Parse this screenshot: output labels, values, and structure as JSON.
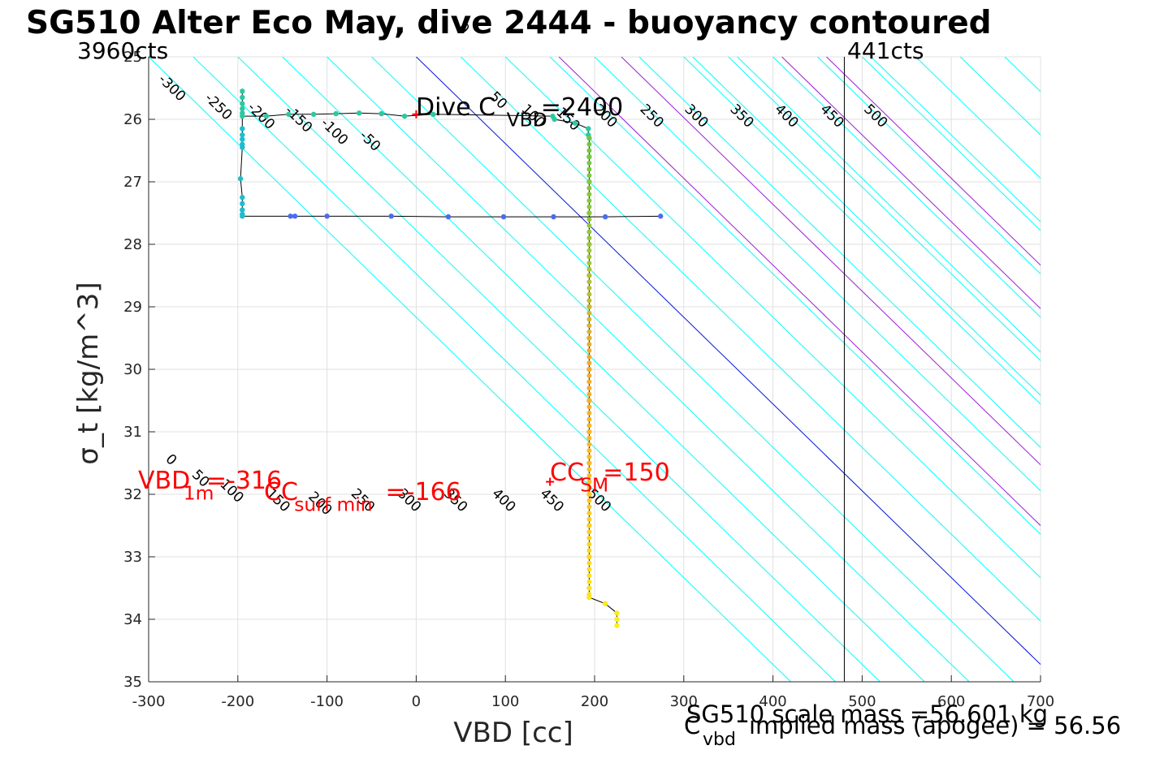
{
  "title": "SG510 Alter Eco May, dive 2444 - buoyancy contoured",
  "colors": {
    "background": "#ffffff",
    "contour": "#00ffff",
    "contour_highlight": "#9b1ed6",
    "zero_line": "#0016d8",
    "profile_line": "#000000",
    "annotation": "#ff0000",
    "grid": "#e0e0e0"
  },
  "chart_data": {
    "type": "scatter",
    "title": "SG510 Alter Eco May, dive 2444 - buoyancy contoured",
    "xlabel": "VBD [cc]",
    "ylabel": "σ_t [kg/m^3]",
    "xlim": [
      -300,
      700
    ],
    "ylim": [
      25,
      35
    ],
    "y_reversed": true,
    "grid": true,
    "x_ticks": [
      -300,
      -200,
      -100,
      0,
      100,
      200,
      300,
      400,
      500,
      600,
      700
    ],
    "y_ticks": [
      25,
      26,
      27,
      28,
      29,
      30,
      31,
      32,
      33,
      34,
      35
    ],
    "contour_slope_cc_per_sigma": 72,
    "upper_contours": {
      "levels": [
        -300,
        -250,
        -200,
        -150,
        -100,
        -50,
        0,
        50,
        100,
        150,
        200,
        250,
        300,
        350,
        400,
        450,
        500
      ],
      "offset": 0,
      "label_positions": [
        {
          "level": -300,
          "x": -274,
          "y": 25.5
        },
        {
          "level": -250,
          "x": -222,
          "y": 25.8
        },
        {
          "level": -200,
          "x": -174,
          "y": 25.95
        },
        {
          "level": -150,
          "x": -132,
          "y": 26.0
        },
        {
          "level": -100,
          "x": -92,
          "y": 26.2
        },
        {
          "level": -50,
          "x": -52,
          "y": 26.35
        },
        {
          "level": 0,
          "x": 53,
          "y": 24.55
        },
        {
          "level": 50,
          "x": 92,
          "y": 25.7
        },
        {
          "level": 100,
          "x": 131,
          "y": 25.95
        },
        {
          "level": 150,
          "x": 170,
          "y": 26.0
        },
        {
          "level": 200,
          "x": 212,
          "y": 25.95
        },
        {
          "level": 250,
          "x": 264,
          "y": 25.95
        },
        {
          "level": 300,
          "x": 314,
          "y": 25.95
        },
        {
          "level": 350,
          "x": 365,
          "y": 25.95
        },
        {
          "level": 400,
          "x": 415,
          "y": 25.95
        },
        {
          "level": 450,
          "x": 466,
          "y": 25.95
        },
        {
          "level": 500,
          "x": 515,
          "y": 25.95
        }
      ]
    },
    "lower_contours": {
      "levels": [
        0,
        50,
        100,
        150,
        200,
        250,
        300,
        350,
        400,
        450,
        500
      ],
      "offset": -310,
      "label_positions": [
        {
          "level": 0,
          "x": -275,
          "y": 31.45
        },
        {
          "level": 50,
          "x": -242,
          "y": 31.75
        },
        {
          "level": 100,
          "x": -207,
          "y": 31.95
        },
        {
          "level": 150,
          "x": -155,
          "y": 32.1
        },
        {
          "level": 200,
          "x": -108,
          "y": 32.15
        },
        {
          "level": 250,
          "x": -60,
          "y": 32.1
        },
        {
          "level": 300,
          "x": -8,
          "y": 32.1
        },
        {
          "level": 350,
          "x": 44,
          "y": 32.1
        },
        {
          "level": 400,
          "x": 98,
          "y": 32.1
        },
        {
          "level": 450,
          "x": 152,
          "y": 32.1
        },
        {
          "level": 500,
          "x": 205,
          "y": 32.1
        }
      ]
    },
    "vertical_line": {
      "x": 480
    },
    "corner_labels": {
      "left": "3960cts",
      "right": "441cts"
    },
    "series": [
      {
        "points": [
          {
            "x": -195,
            "y": 25.55
          },
          {
            "x": -195,
            "y": 25.65
          },
          {
            "x": -195,
            "y": 25.75
          },
          {
            "x": -195,
            "y": 25.83
          },
          {
            "x": -195,
            "y": 25.9
          },
          {
            "x": -195,
            "y": 25.95
          },
          {
            "x": -168,
            "y": 25.95
          },
          {
            "x": -143,
            "y": 25.92
          },
          {
            "x": -115,
            "y": 25.92
          },
          {
            "x": -90,
            "y": 25.91
          },
          {
            "x": -64,
            "y": 25.9
          },
          {
            "x": -39,
            "y": 25.91
          },
          {
            "x": -13,
            "y": 25.95
          },
          {
            "x": 19,
            "y": 25.92
          },
          {
            "x": 153,
            "y": 25.95
          },
          {
            "x": 155,
            "y": 26.0
          },
          {
            "x": 178,
            "y": 26.06
          },
          {
            "x": 193,
            "y": 26.15
          },
          {
            "x": 193,
            "y": 26.25
          }
        ]
      },
      {
        "points": [
          {
            "x": -195,
            "y": 26.15
          },
          {
            "x": -195,
            "y": 26.25
          },
          {
            "x": -195,
            "y": 26.32
          },
          {
            "x": -195,
            "y": 26.4
          },
          {
            "x": -195,
            "y": 26.45
          },
          {
            "x": -197,
            "y": 26.95
          },
          {
            "x": -195,
            "y": 27.25
          },
          {
            "x": -195,
            "y": 27.35
          },
          {
            "x": -195,
            "y": 27.45
          },
          {
            "x": -195,
            "y": 27.52
          },
          {
            "x": -195,
            "y": 27.55
          }
        ]
      },
      {
        "points": [
          {
            "x": -141,
            "y": 27.55
          },
          {
            "x": -136,
            "y": 27.55
          },
          {
            "x": -100,
            "y": 27.55
          },
          {
            "x": -28,
            "y": 27.55
          },
          {
            "x": 36,
            "y": 27.56
          },
          {
            "x": 98,
            "y": 27.56
          },
          {
            "x": 154,
            "y": 27.56
          },
          {
            "x": 212,
            "y": 27.56
          },
          {
            "x": 274,
            "y": 27.55
          }
        ]
      },
      {
        "points": [
          {
            "x": 194,
            "y": 26.3
          },
          {
            "x": 194,
            "y": 26.6
          },
          {
            "x": 194,
            "y": 27.0
          },
          {
            "x": 194,
            "y": 27.5
          },
          {
            "x": 194,
            "y": 28.0
          },
          {
            "x": 194,
            "y": 28.5
          },
          {
            "x": 194,
            "y": 29.0
          },
          {
            "x": 194,
            "y": 29.5
          },
          {
            "x": 194,
            "y": 30.0
          },
          {
            "x": 194,
            "y": 30.5
          },
          {
            "x": 194,
            "y": 31.0
          },
          {
            "x": 194,
            "y": 31.5
          },
          {
            "x": 194,
            "y": 32.0
          },
          {
            "x": 194,
            "y": 32.5
          },
          {
            "x": 194,
            "y": 33.0
          },
          {
            "x": 194,
            "y": 33.5
          },
          {
            "x": 194,
            "y": 33.65
          },
          {
            "x": 212,
            "y": 33.75
          },
          {
            "x": 225,
            "y": 33.9
          },
          {
            "x": 225,
            "y": 34.0
          },
          {
            "x": 225,
            "y": 34.1
          }
        ]
      }
    ],
    "markers": [
      {
        "x": 0,
        "y": 25.92
      },
      {
        "x": 150,
        "y": 31.8
      }
    ],
    "annotations": {
      "dive_c": {
        "main": "Dive C",
        "sub": "VBD",
        "value": "=2400"
      },
      "vbd_1m": {
        "main": "VBD",
        "sub": "1m",
        "value": "=-316"
      },
      "cc_surf": {
        "main": "CC",
        "sub": "surf min",
        "value": "=-166"
      },
      "cc_sm": {
        "main": "CC",
        "sub": "SM",
        "value": "=150"
      }
    },
    "footer": {
      "scale_mass": "SG510 scale mass =56.601 kg",
      "cvbd_main": "C",
      "cvbd_sub": "vbd",
      "implied_mass": "implied mass (apogee) = 56.56"
    }
  }
}
